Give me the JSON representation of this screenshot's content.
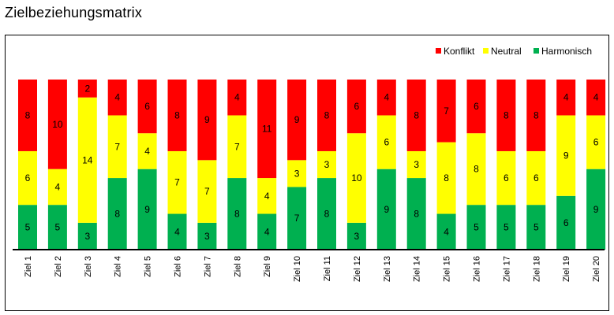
{
  "title": "Zielbeziehungsmatrix",
  "chart_data": {
    "type": "bar",
    "stacked": true,
    "categories": [
      "Ziel 1",
      "Ziel 2",
      "Ziel 3",
      "Ziel 4",
      "Ziel 5",
      "Ziel 6",
      "Ziel 7",
      "Ziel 8",
      "Ziel 9",
      "Ziel 10",
      "Ziel 11",
      "Ziel 12",
      "Ziel 13",
      "Ziel 14",
      "Ziel 15",
      "Ziel 16",
      "Ziel 17",
      "Ziel 18",
      "Ziel 19",
      "Ziel 20"
    ],
    "series": [
      {
        "name": "Harmonisch",
        "color": "#00b050",
        "values": [
          5,
          5,
          3,
          8,
          9,
          4,
          3,
          8,
          4,
          7,
          8,
          3,
          9,
          8,
          4,
          5,
          5,
          5,
          6,
          9
        ]
      },
      {
        "name": "Neutral",
        "color": "#ffff00",
        "values": [
          6,
          4,
          14,
          7,
          4,
          7,
          7,
          7,
          4,
          3,
          3,
          10,
          6,
          3,
          8,
          8,
          6,
          6,
          9,
          6
        ]
      },
      {
        "name": "Konflikt",
        "color": "#ff0000",
        "values": [
          8,
          10,
          2,
          4,
          6,
          8,
          9,
          4,
          11,
          9,
          8,
          6,
          4,
          8,
          7,
          6,
          8,
          8,
          4,
          4
        ]
      }
    ],
    "legend_order": [
      "Konflikt",
      "Neutral",
      "Harmonisch"
    ],
    "legend_position": "top-right",
    "ylim": [
      0,
      19
    ],
    "grid": false
  }
}
